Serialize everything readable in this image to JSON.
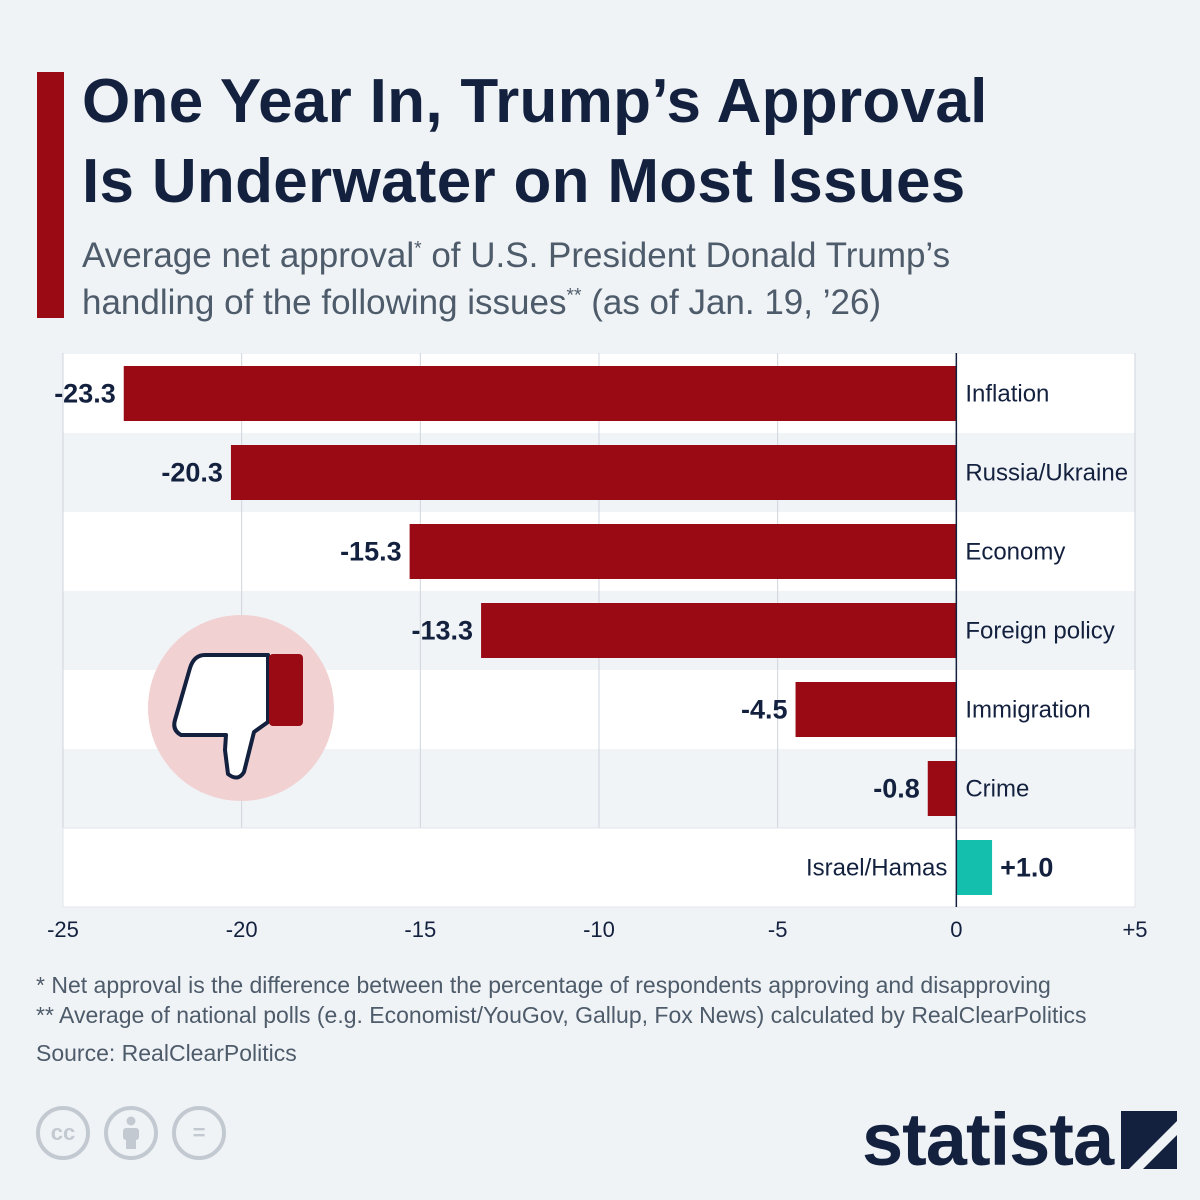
{
  "header": {
    "title_line1": "One Year In, Trump’s Approval",
    "title_line2": "Is Underwater on Most Issues",
    "subtitle_line1_a": "Average net approval",
    "subtitle_line1_sup": "*",
    "subtitle_line1_b": " of U.S. President Donald Trump’s",
    "subtitle_line2_a": "handling of the following issues",
    "subtitle_line2_sup": "**",
    "subtitle_line2_b": " (as of Jan. 19, ’26)"
  },
  "colors": {
    "accent": "#9a0a14",
    "negative": "#9a0a14",
    "positive": "#14bfae",
    "title": "#13213f",
    "thumb_circle": "#f1d1d2"
  },
  "chart_data": {
    "type": "bar",
    "orientation": "horizontal",
    "categories": [
      "Inflation",
      "Russia/Ukraine",
      "Economy",
      "Foreign policy",
      "Immigration",
      "Crime",
      "Israel/Hamas"
    ],
    "values": [
      -23.3,
      -20.3,
      -15.3,
      -13.3,
      -4.5,
      -0.8,
      1.0
    ],
    "value_labels": [
      "-23.3",
      "-20.3",
      "-15.3",
      "-13.3",
      "-4.5",
      "-0.8",
      "+1.0"
    ],
    "xlim": [
      -25,
      5
    ],
    "x_ticks": [
      -25,
      -20,
      -15,
      -10,
      -5,
      0,
      5
    ],
    "x_tick_labels": [
      "-25",
      "-20",
      "-15",
      "-10",
      "-5",
      "0",
      "+5"
    ],
    "grid": true,
    "title": "",
    "xlabel": "",
    "ylabel": ""
  },
  "decor": {
    "thumb_icon": "thumbs-down-icon"
  },
  "footnotes": {
    "note1": "*   Net approval is the difference between the percentage of respondents approving and disapproving",
    "note2": "** Average of national polls (e.g. Economist/YouGov, Gallup, Fox News) calculated by RealClearPolitics",
    "source": "Source: RealClearPolitics"
  },
  "license_icons": [
    {
      "name": "cc-icon",
      "glyph": "cc"
    },
    {
      "name": "attribution-icon",
      "glyph": "i"
    },
    {
      "name": "no-derivatives-icon",
      "glyph": "="
    }
  ],
  "brand": {
    "name": "statista"
  }
}
